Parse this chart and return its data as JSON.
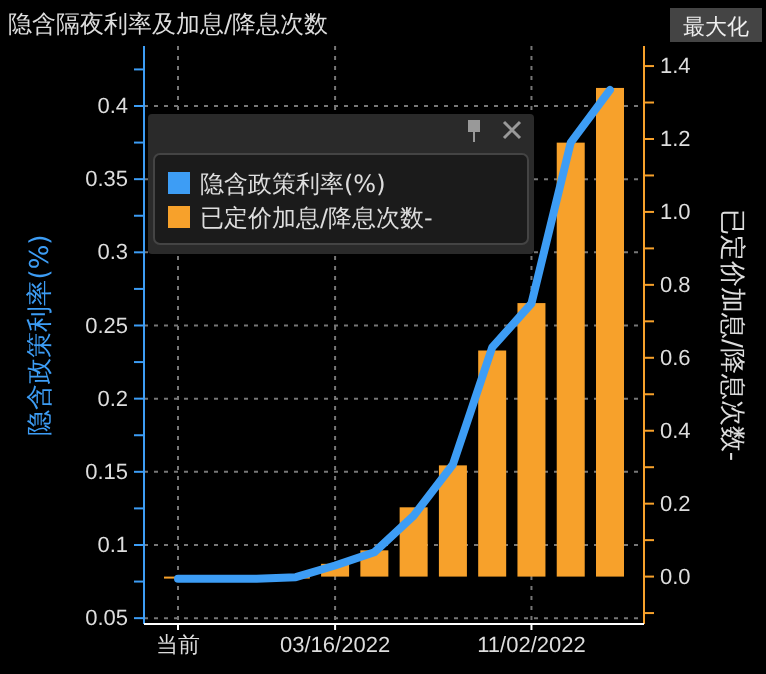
{
  "chart_data": {
    "type": "bar",
    "title": "隐含隔夜利率及加息/降息次数",
    "annotations": [
      "最大化"
    ],
    "ylabel": "隐含政策利率(%)",
    "y2label": "已定价加息/降息次数-",
    "categories": [
      "当前",
      null,
      null,
      null,
      "03/16/2022",
      null,
      null,
      null,
      null,
      "11/02/2022",
      null,
      null
    ],
    "series": [
      {
        "name": "隐含政策利率(%)",
        "type": "line",
        "color": "#3d9df5",
        "values": [
          0.077,
          0.077,
          0.077,
          0.078,
          0.086,
          0.095,
          0.12,
          0.155,
          0.235,
          0.265,
          0.375,
          0.411
        ]
      },
      {
        "name": "已定价加息/降息次数-",
        "axis": "y2",
        "color": "#f7a12b",
        "values": [
          0,
          0,
          0,
          0,
          0.035,
          0.072,
          0.19,
          0.305,
          0.62,
          0.75,
          1.19,
          1.34
        ]
      }
    ],
    "ylim": [
      0.046,
      0.441
    ],
    "yticks": [
      0.05,
      {
        "value": 0.075,
        "label": null
      },
      0.1,
      {
        "value": 0.125,
        "label": null
      },
      0.15,
      {
        "value": 0.175,
        "label": null
      },
      0.2,
      {
        "value": 0.225,
        "label": null
      },
      0.25,
      {
        "value": 0.275,
        "label": null
      },
      0.3,
      {
        "value": 0.325,
        "label": null
      },
      0.35,
      {
        "value": 0.375,
        "label": null
      },
      0.4,
      {
        "value": 0.425,
        "label": null
      }
    ],
    "y2lim": [
      -0.13,
      1.455
    ],
    "y2ticks": [
      {
        "value": -0.1,
        "label": null
      },
      {
        "value": 0,
        "label": "0.0"
      },
      {
        "value": 0.1,
        "label": null
      },
      {
        "value": 0.2,
        "label": "0.2"
      },
      {
        "value": 0.3,
        "label": null
      },
      {
        "value": 0.4,
        "label": "0.4"
      },
      {
        "value": 0.5,
        "label": null
      },
      {
        "value": 0.6,
        "label": "0.6"
      },
      {
        "value": 0.7,
        "label": null
      },
      {
        "value": 0.8,
        "label": "0.8"
      },
      {
        "value": 0.9,
        "label": null
      },
      {
        "value": 1,
        "label": "1.0"
      },
      {
        "value": 1.1,
        "label": null
      },
      {
        "value": 1.2,
        "label": "1.2"
      },
      {
        "value": 1.3,
        "label": null
      },
      {
        "value": 1.4,
        "label": "1.4"
      }
    ],
    "grid": true,
    "legend": "top left",
    "line_style": "solid"
  }
}
